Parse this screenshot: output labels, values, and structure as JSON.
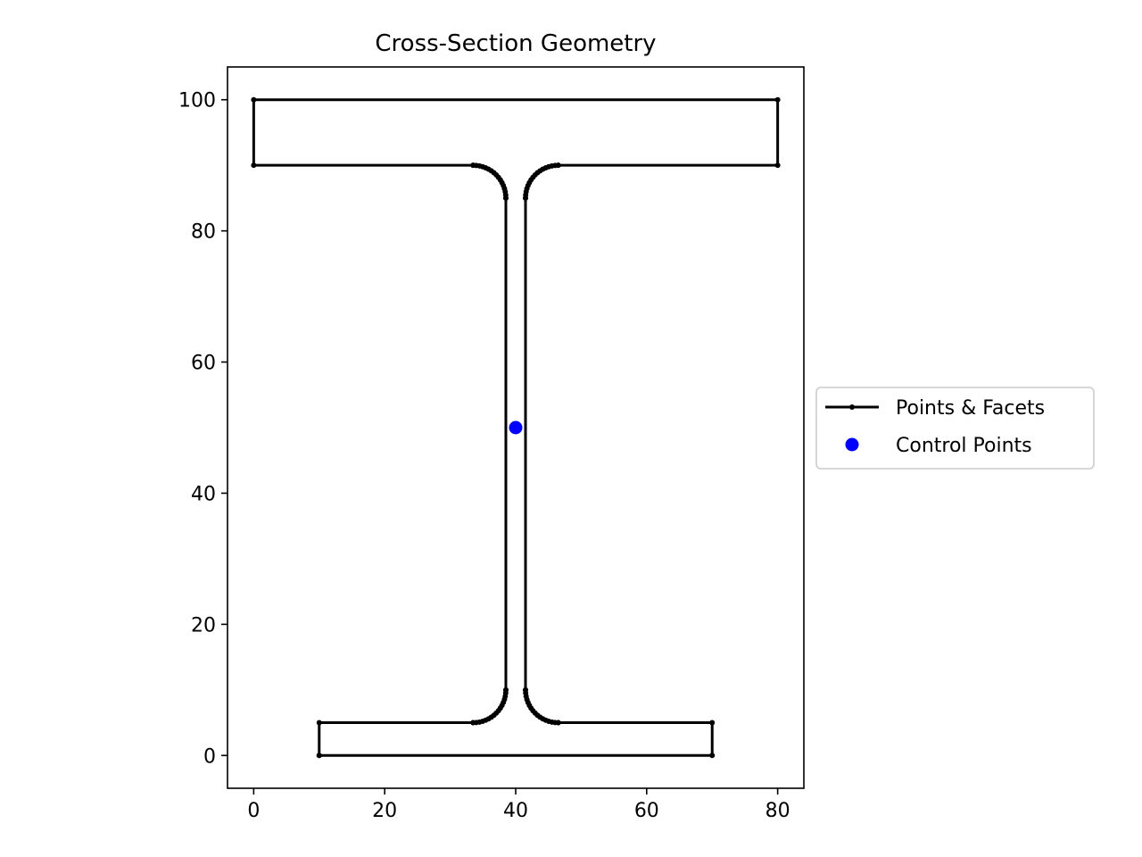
{
  "chart_data": {
    "type": "line",
    "title": "Cross-Section Geometry",
    "xlabel": "",
    "ylabel": "",
    "xlim": [
      -4,
      84
    ],
    "ylim": [
      -5,
      105
    ],
    "xticks": [
      0,
      20,
      40,
      60,
      80
    ],
    "yticks": [
      0,
      20,
      40,
      60,
      80,
      100
    ],
    "grid": false,
    "legend_position": "center-right-outside",
    "series": [
      {
        "name": "Points & Facets",
        "kind": "outline",
        "color": "#000000",
        "fillet_radius": 5,
        "vertices": [
          [
            10,
            0
          ],
          [
            70,
            0
          ],
          [
            70,
            5
          ],
          [
            46.5,
            5
          ],
          {
            "fillet": [
              46.5,
              10
            ],
            "from_deg": -90,
            "to_deg": -180
          },
          [
            41.5,
            10
          ],
          [
            41.5,
            85
          ],
          {
            "fillet": [
              46.5,
              85
            ],
            "from_deg": 180,
            "to_deg": 90
          },
          [
            46.5,
            90
          ],
          [
            80,
            90
          ],
          [
            80,
            100
          ],
          [
            0,
            100
          ],
          [
            0,
            90
          ],
          [
            33.5,
            90
          ],
          {
            "fillet": [
              33.5,
              85
            ],
            "from_deg": 90,
            "to_deg": 0
          },
          [
            38.5,
            85
          ],
          [
            38.5,
            10
          ],
          {
            "fillet": [
              33.5,
              10
            ],
            "from_deg": 0,
            "to_deg": -90
          },
          [
            33.5,
            5
          ],
          [
            10,
            5
          ],
          [
            10,
            0
          ]
        ]
      },
      {
        "name": "Control Points",
        "kind": "scatter",
        "color": "#0000ff",
        "points": [
          [
            40,
            50
          ]
        ]
      }
    ]
  }
}
